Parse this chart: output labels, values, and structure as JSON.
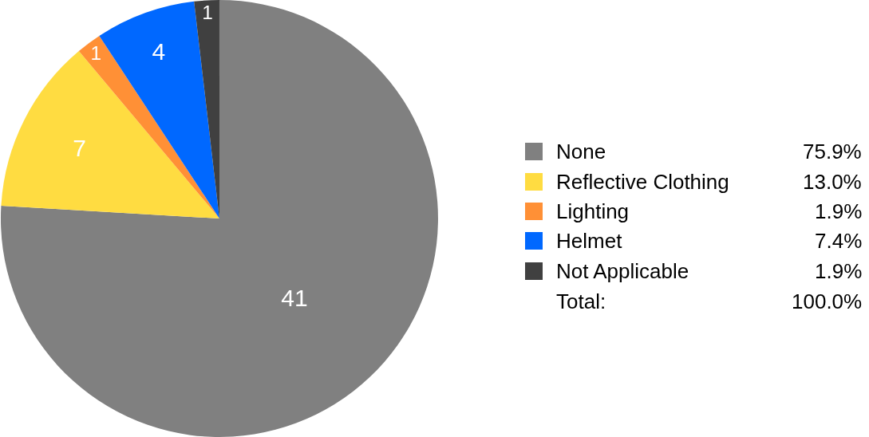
{
  "chart_data": {
    "type": "pie",
    "categories": [
      "None",
      "Reflective Clothing",
      "Lighting",
      "Helmet",
      "Not Applicable"
    ],
    "values": [
      41,
      7,
      1,
      4,
      1
    ],
    "colors": [
      "#808080",
      "#ffdc41",
      "#ff9036",
      "#0068ff",
      "#404040"
    ],
    "data_labels": true,
    "legend": "right",
    "annotations": [
      "75.9%",
      "13.0%",
      "1.9%",
      "7.4%",
      "1.9%",
      "Total:",
      "100.0%"
    ]
  }
}
